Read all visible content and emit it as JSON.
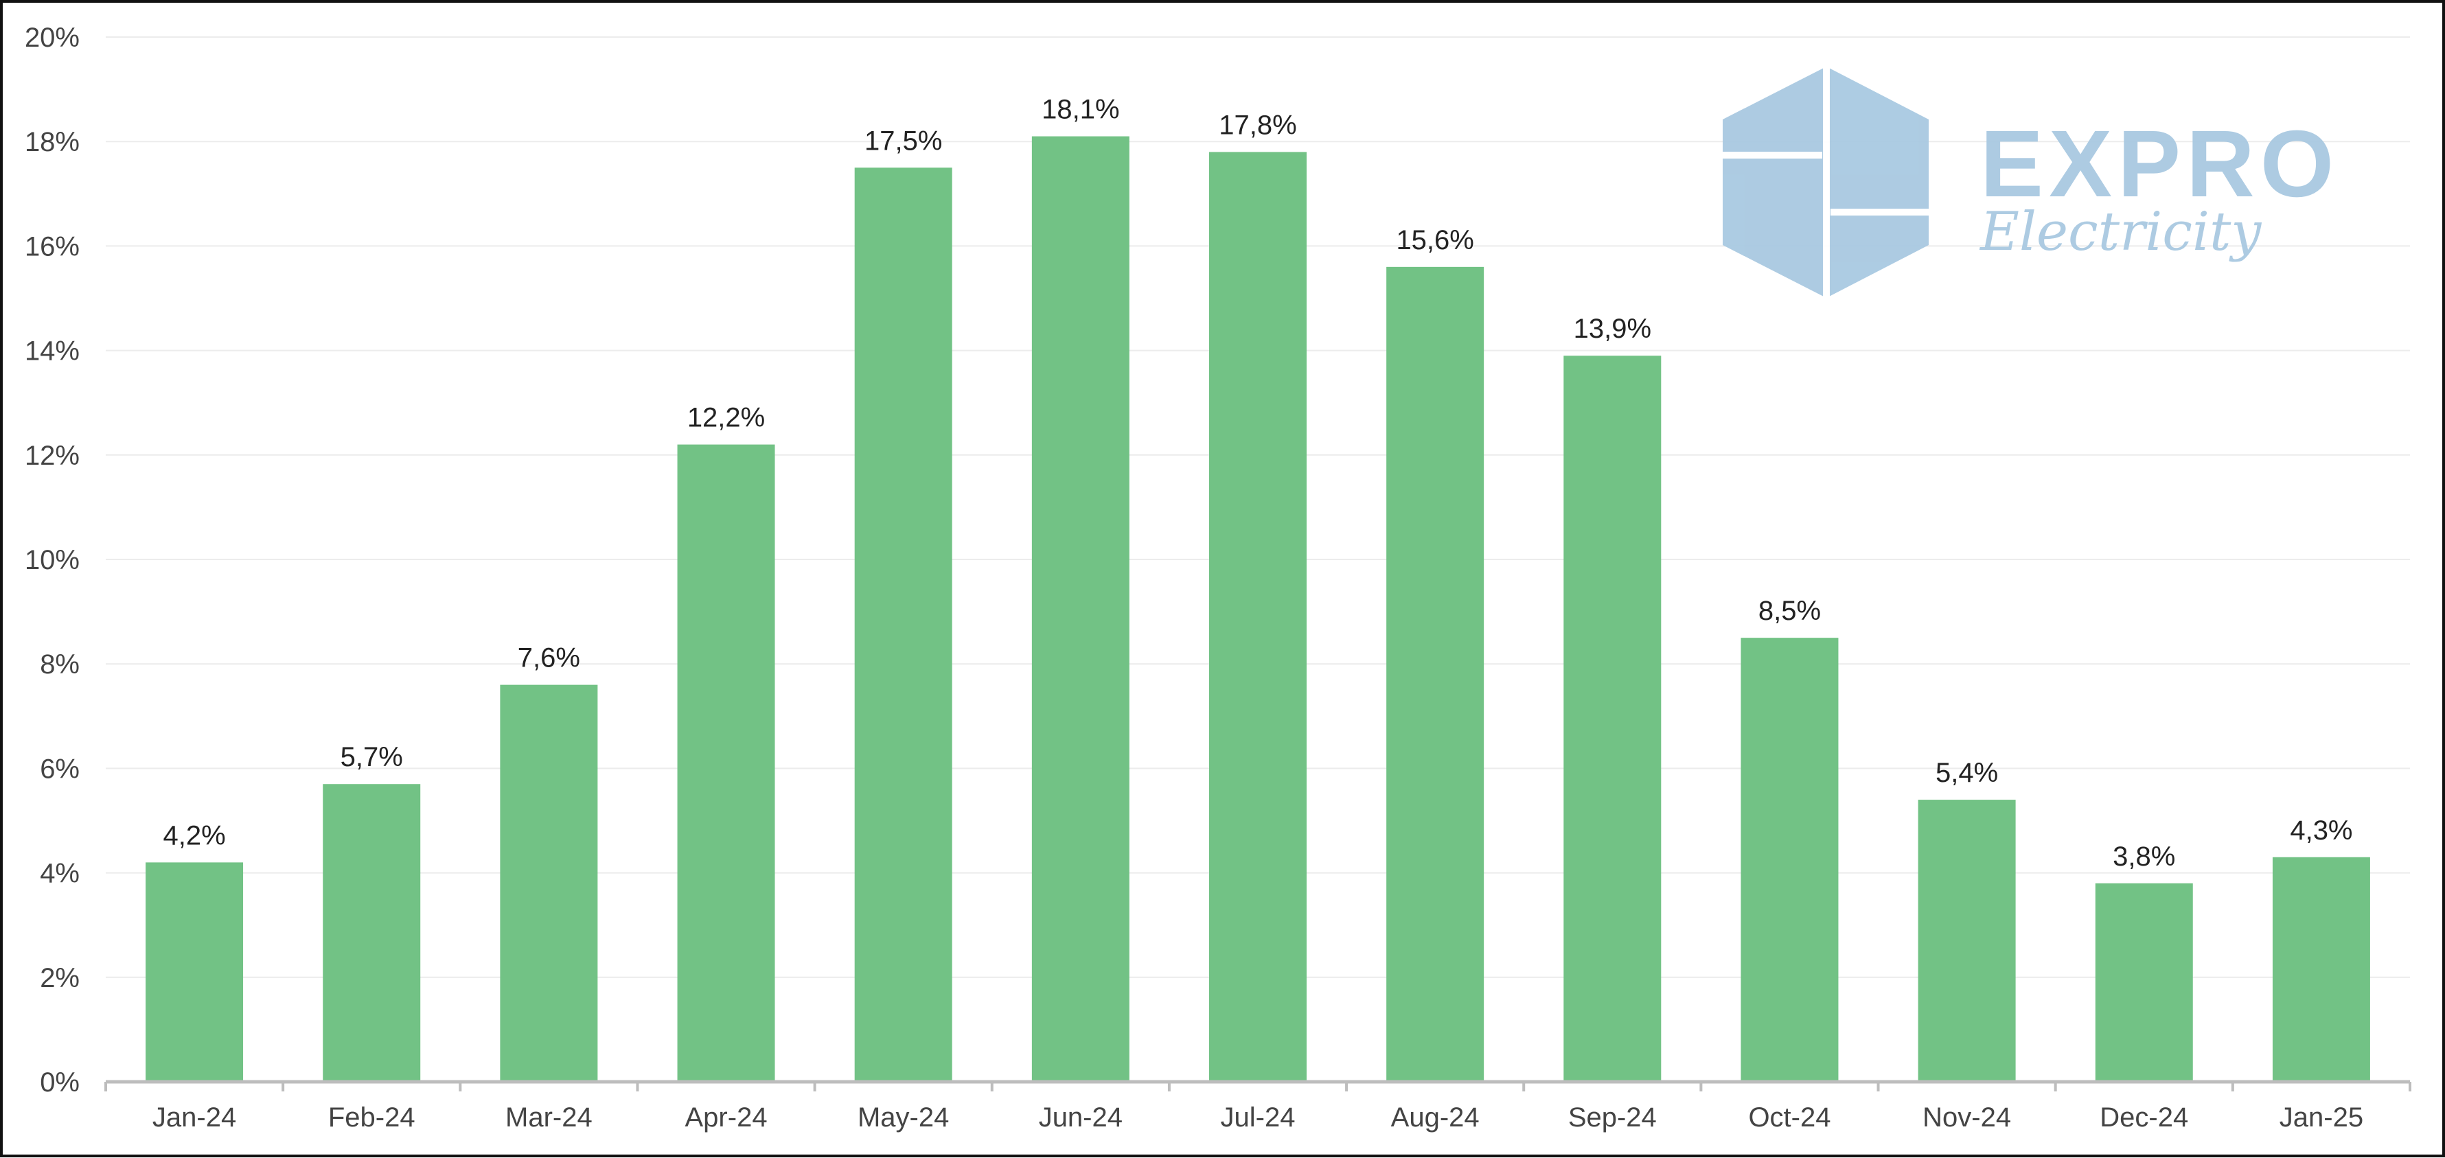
{
  "chart_data": {
    "type": "bar",
    "categories": [
      "Jan-24",
      "Feb-24",
      "Mar-24",
      "Apr-24",
      "May-24",
      "Jun-24",
      "Jul-24",
      "Aug-24",
      "Sep-24",
      "Oct-24",
      "Nov-24",
      "Dec-24",
      "Jan-25"
    ],
    "values": [
      4.2,
      5.7,
      7.6,
      12.2,
      17.5,
      18.1,
      17.8,
      15.6,
      13.9,
      8.5,
      5.4,
      3.8,
      4.3
    ],
    "value_labels": [
      "4,2%",
      "5,7%",
      "7,6%",
      "12,2%",
      "17,5%",
      "18,1%",
      "17,8%",
      "15,6%",
      "13,9%",
      "8,5%",
      "5,4%",
      "3,8%",
      "4,3%"
    ],
    "ylim": [
      0,
      20
    ],
    "yticks": [
      0,
      2,
      4,
      6,
      8,
      10,
      12,
      14,
      16,
      18,
      20
    ],
    "ytick_labels": [
      "0%",
      "2%",
      "4%",
      "6%",
      "8%",
      "10%",
      "12%",
      "14%",
      "16%",
      "18%",
      "20%"
    ],
    "title": "",
    "xlabel": "",
    "ylabel": "",
    "grid": true,
    "legend": false,
    "colors": {
      "bar": "#72c285",
      "grid": "#ececec",
      "axis": "#bdbdbd",
      "logo": "#a9c9e1"
    }
  },
  "logo": {
    "wordmark": "EXPRO",
    "subtitle": "Electricity",
    "icon": "hexagon-window-logo-icon",
    "placement": "top-right"
  }
}
